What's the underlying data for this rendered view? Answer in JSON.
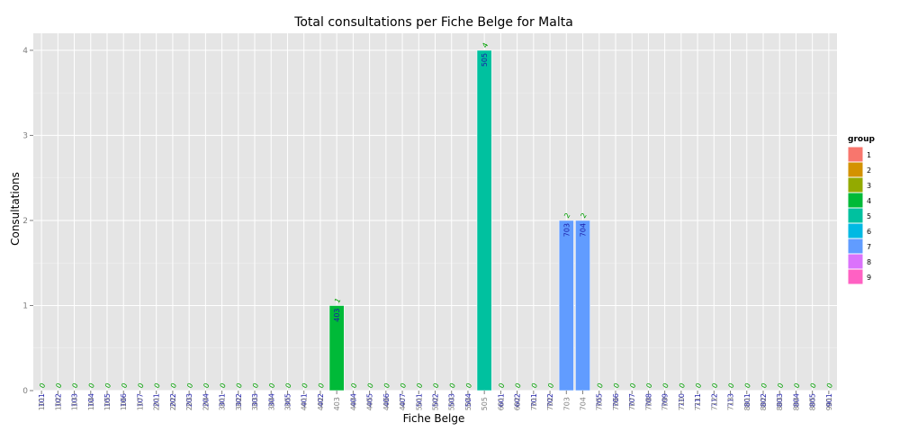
{
  "chart_data": {
    "type": "bar",
    "title": "Total consultations per Fiche Belge for Malta",
    "xlabel": "Fiche Belge",
    "ylabel": "Consultations",
    "ylim": [
      0,
      4.2
    ],
    "yticks": [
      0,
      1,
      2,
      3,
      4
    ],
    "grid": true,
    "legend_position": "right",
    "legend_title": "group",
    "groups": [
      "1",
      "2",
      "3",
      "4",
      "5",
      "6",
      "7",
      "8",
      "9"
    ],
    "group_colors": [
      "#F8766D",
      "#D39200",
      "#93AA00",
      "#00BA38",
      "#00C19F",
      "#00B9E3",
      "#619CFF",
      "#DB72FB",
      "#FF61C3"
    ],
    "categories": [
      "101",
      "102",
      "103",
      "104",
      "105",
      "106",
      "107",
      "201",
      "202",
      "203",
      "204",
      "301",
      "302",
      "303",
      "304",
      "305",
      "401",
      "402",
      "403",
      "404",
      "405",
      "406",
      "407",
      "501",
      "502",
      "503",
      "504",
      "505",
      "601",
      "602",
      "701",
      "702",
      "703",
      "704",
      "705",
      "706",
      "707",
      "708",
      "709",
      "710",
      "711",
      "712",
      "713",
      "801",
      "802",
      "803",
      "804",
      "805",
      "901"
    ],
    "values": [
      0,
      0,
      0,
      0,
      0,
      0,
      0,
      0,
      0,
      0,
      0,
      0,
      0,
      0,
      0,
      0,
      0,
      0,
      1,
      0,
      0,
      0,
      0,
      0,
      0,
      0,
      0,
      4,
      0,
      0,
      0,
      0,
      2,
      2,
      0,
      0,
      0,
      0,
      0,
      0,
      0,
      0,
      0,
      0,
      0,
      0,
      0,
      0,
      0
    ],
    "bar_groups": [
      "1",
      "1",
      "1",
      "1",
      "1",
      "1",
      "1",
      "2",
      "2",
      "2",
      "2",
      "3",
      "3",
      "3",
      "3",
      "3",
      "4",
      "4",
      "4",
      "4",
      "4",
      "4",
      "4",
      "5",
      "5",
      "5",
      "5",
      "5",
      "6",
      "6",
      "7",
      "7",
      "7",
      "7",
      "7",
      "7",
      "7",
      "7",
      "7",
      "7",
      "7",
      "7",
      "7",
      "8",
      "8",
      "8",
      "8",
      "8",
      "9"
    ],
    "data_label_color": "#1a1aa6",
    "value_label_color": "#00a000"
  }
}
